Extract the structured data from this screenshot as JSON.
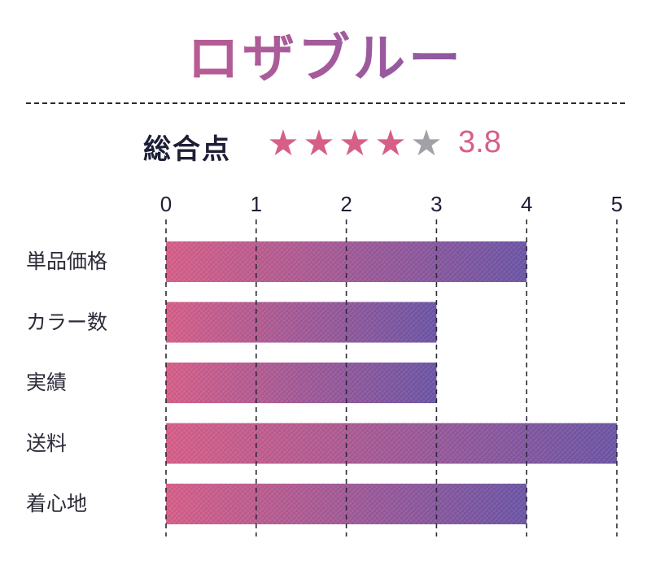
{
  "title": "ロザブルー",
  "summary": {
    "label": "総合点",
    "score": "3.8",
    "rating": 3.8,
    "max_rating": 5,
    "star_on_color": "#d65f88",
    "star_off_color": "#a1a1a8"
  },
  "colors": {
    "bar_start": "#d65f88",
    "bar_end": "#6d56a6",
    "title_start": "#d65f88",
    "title_end": "#6d56a6",
    "text": "#1e1f36"
  },
  "chart_data": {
    "type": "bar",
    "orientation": "horizontal",
    "categories": [
      "単品価格",
      "カラー数",
      "実績",
      "送料",
      "着心地"
    ],
    "values": [
      4,
      3,
      3,
      5,
      4
    ],
    "xlim": [
      0,
      5
    ],
    "xticks": [
      "0",
      "1",
      "2",
      "3",
      "4",
      "5"
    ],
    "grid": "vertical dashed",
    "legend": "none"
  }
}
